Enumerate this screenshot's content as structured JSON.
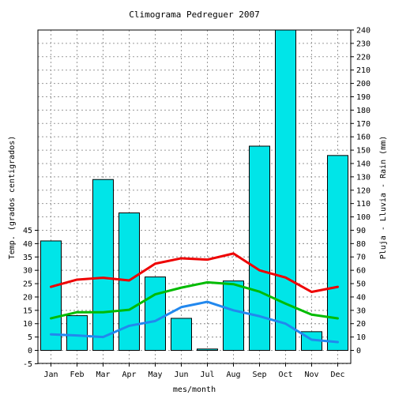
{
  "chart_data": {
    "type": "bar+line",
    "title": "Climograma Pedreguer 2007",
    "xlabel": "mes/month",
    "ylabel_left": "Temp. (grados centigrados)",
    "ylabel_right": "Pluja - Lluvia - Rain (mm)",
    "categories": [
      "Jan",
      "Feb",
      "Mar",
      "Apr",
      "May",
      "Jun",
      "Jul",
      "Aug",
      "Sep",
      "Oct",
      "Nov",
      "Dec"
    ],
    "left_axis": {
      "min": -5,
      "max": 45,
      "ticks": [
        -5,
        0,
        5,
        10,
        15,
        20,
        25,
        30,
        35,
        40,
        45
      ]
    },
    "right_axis": {
      "min": 0,
      "max": 240,
      "ticks": [
        0,
        10,
        20,
        30,
        40,
        50,
        60,
        70,
        80,
        90,
        100,
        110,
        120,
        130,
        140,
        150,
        160,
        170,
        180,
        190,
        200,
        210,
        220,
        230,
        240
      ]
    },
    "grid": true,
    "rain_bars": {
      "axis": "right",
      "color": "#00e5e8",
      "values": [
        82,
        26,
        128,
        103,
        55,
        24,
        1,
        52,
        153,
        240,
        14,
        146
      ]
    },
    "series": [
      {
        "axis": "left",
        "color": "#ee0000",
        "values": [
          23.8,
          26.5,
          27.2,
          26.2,
          32.5,
          34.5,
          34.0,
          36.3,
          30.0,
          27.3,
          21.9,
          23.8
        ]
      },
      {
        "axis": "left",
        "color": "#00bb00",
        "values": [
          12.0,
          14.3,
          14.3,
          15.2,
          21.0,
          23.5,
          25.5,
          24.8,
          22.0,
          17.5,
          13.4,
          12.0
        ]
      },
      {
        "axis": "left",
        "color": "#2288ee",
        "values": [
          6.0,
          5.6,
          5.0,
          9.2,
          11.0,
          16.2,
          18.2,
          15.0,
          12.8,
          10.0,
          4.0,
          3.1
        ]
      }
    ]
  }
}
